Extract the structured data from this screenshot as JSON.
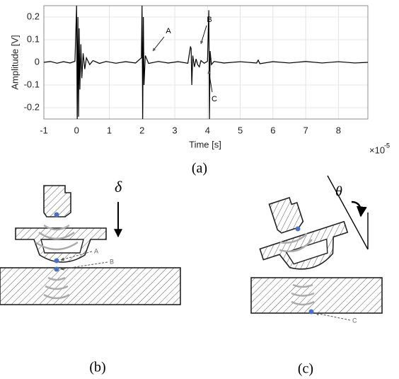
{
  "chart_data": {
    "type": "line",
    "xlabel": "Time [s]",
    "ylabel": "Amplitude [V]",
    "x_multiplier": "×10",
    "x_multiplier_exponent": "-5",
    "xlim": [
      -1,
      8.9
    ],
    "ylim": [
      -0.25,
      0.25
    ],
    "xticks": [
      -1,
      0,
      1,
      2,
      3,
      4,
      5,
      6,
      7,
      8
    ],
    "yticks": [
      -0.2,
      -0.1,
      0,
      0.1,
      0.2
    ],
    "grid": true,
    "color": "#000000",
    "annotations": [
      "A",
      "B",
      "C"
    ],
    "x": [
      -1,
      -0.8,
      -0.6,
      -0.4,
      -0.2,
      -0.05,
      0,
      0.02,
      0.04,
      0.06,
      0.08,
      0.1,
      0.13,
      0.16,
      0.2,
      0.25,
      0.3,
      0.4,
      0.5,
      0.7,
      0.9,
      1.2,
      1.5,
      1.8,
      1.98,
      2.0,
      2.02,
      2.04,
      2.06,
      2.1,
      2.2,
      2.5,
      2.8,
      3.1,
      3.4,
      3.48,
      3.5,
      3.52,
      3.55,
      3.6,
      3.65,
      3.7,
      3.75,
      3.8,
      3.9,
      4.0,
      4.04,
      4.06,
      4.08,
      4.12,
      4.2,
      4.5,
      5.0,
      5.5,
      5.55,
      5.6,
      6.0,
      6.5,
      7.0,
      7.5,
      8.0,
      8.5,
      8.9
    ],
    "values": [
      0,
      0.004,
      -0.004,
      0.003,
      -0.003,
      0.005,
      0.25,
      -0.25,
      0.2,
      -0.24,
      0.15,
      -0.12,
      0.08,
      -0.07,
      0.04,
      -0.03,
      0.02,
      -0.01,
      0.008,
      -0.005,
      0.004,
      -0.004,
      0.003,
      -0.003,
      0.02,
      0.25,
      -0.25,
      0.2,
      -0.1,
      0.03,
      -0.005,
      0.004,
      -0.003,
      0.003,
      -0.004,
      0.07,
      0.06,
      -0.1,
      0.03,
      -0.02,
      0.015,
      -0.01,
      -0.02,
      0.008,
      -0.004,
      0.005,
      0.23,
      -0.25,
      0.05,
      -0.01,
      0.004,
      -0.003,
      0.003,
      -0.003,
      0.01,
      -0.006,
      0.003,
      -0.003,
      0.004,
      -0.003,
      0.003,
      -0.003,
      0
    ]
  },
  "figure": {
    "captions": [
      "(a)",
      "(b)",
      "(c)"
    ],
    "diagram_b": {
      "labels": [
        "A",
        "B"
      ],
      "symbol": "δ"
    },
    "diagram_c": {
      "labels": [
        "C"
      ],
      "symbol": "θ"
    }
  }
}
